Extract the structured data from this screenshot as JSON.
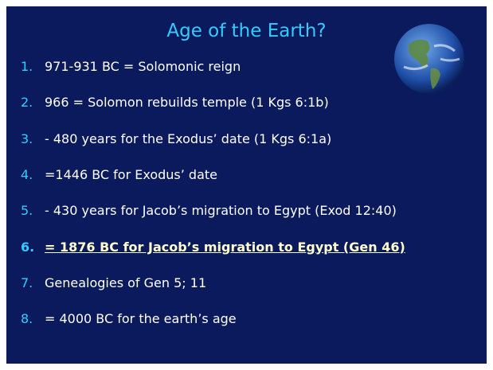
{
  "title": "Age of the Earth?",
  "items": [
    {
      "number": "1.",
      "text": "971-931 BC = Solomonic reign"
    },
    {
      "number": "2.",
      "text": "966 = Solomon rebuilds temple (1 Kgs 6:1b)"
    },
    {
      "number": "3.",
      "text": "- 480 years for the Exodus’ date (1 Kgs 6:1a)"
    },
    {
      "number": "4.",
      "text": "=1446 BC for Exodus’ date"
    },
    {
      "number": "5.",
      "text": "- 430 years for Jacob’s migration to Egypt (Exod 12:40)"
    },
    {
      "number": "6.",
      "text": "= 1876 BC for Jacob’s migration to Egypt (Gen 46)"
    },
    {
      "number": "7.",
      "text": "Genealogies of Gen 5; 11"
    },
    {
      "number": "8.",
      "text": "= 4000 BC for the earth’s age"
    }
  ]
}
